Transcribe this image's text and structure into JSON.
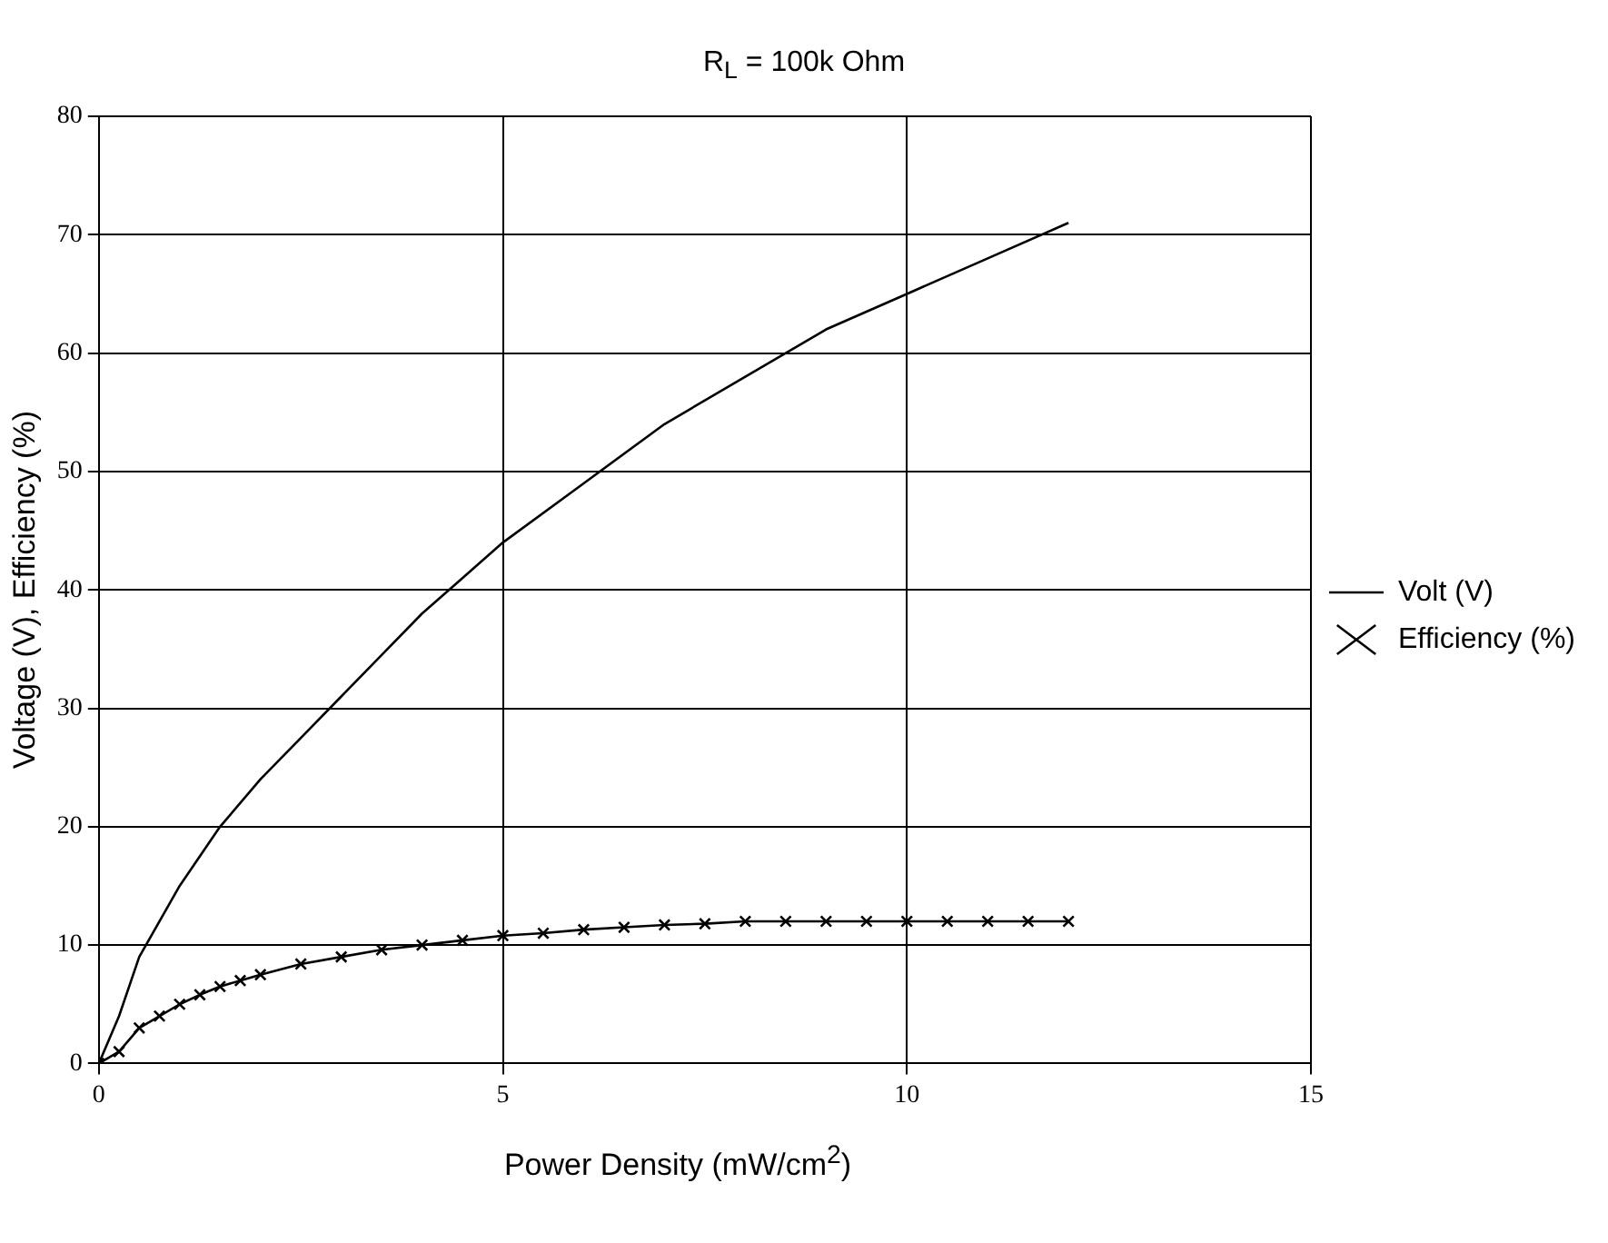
{
  "chart_data": {
    "type": "line",
    "title": "R$_{L}$ = 100k Ohm",
    "xlabel": "Power Density (mW/cm$^{2}$)",
    "ylabel": "Voltage (V), Efficiency (%)",
    "xlim": [
      0,
      15
    ],
    "xticks": [
      0,
      5,
      10,
      15
    ],
    "ylim": [
      0,
      80
    ],
    "yticks": [
      0,
      10,
      20,
      30,
      40,
      50,
      60,
      70,
      80
    ],
    "grid": true,
    "legend": "right",
    "series": [
      {
        "name": "Volt (V)",
        "color": "#000000",
        "marker": "none",
        "x": [
          0,
          0.25,
          0.5,
          1,
          1.5,
          2,
          2.5,
          3,
          3.5,
          4,
          4.5,
          5,
          6,
          7,
          8,
          9,
          10,
          11,
          12
        ],
        "values": [
          0,
          4,
          9,
          15,
          20,
          24,
          27.5,
          31,
          34.5,
          38,
          41,
          44,
          49,
          54,
          58,
          62,
          65,
          68,
          71
        ]
      },
      {
        "name": "Efficiency (%)",
        "color": "#000000",
        "marker": "cross",
        "x": [
          0,
          0.25,
          0.5,
          0.75,
          1,
          1.25,
          1.5,
          1.75,
          2,
          2.5,
          3,
          3.5,
          4,
          4.5,
          5,
          5.5,
          6,
          6.5,
          7,
          7.5,
          8,
          8.5,
          9,
          9.5,
          10,
          10.5,
          11,
          11.5,
          12
        ],
        "values": [
          0,
          1,
          3,
          4,
          5,
          5.8,
          6.5,
          7,
          7.5,
          8.4,
          9,
          9.6,
          10,
          10.4,
          10.8,
          11,
          11.3,
          11.5,
          11.7,
          11.8,
          12,
          12,
          12,
          12,
          12,
          12,
          12,
          12,
          12
        ]
      }
    ]
  }
}
